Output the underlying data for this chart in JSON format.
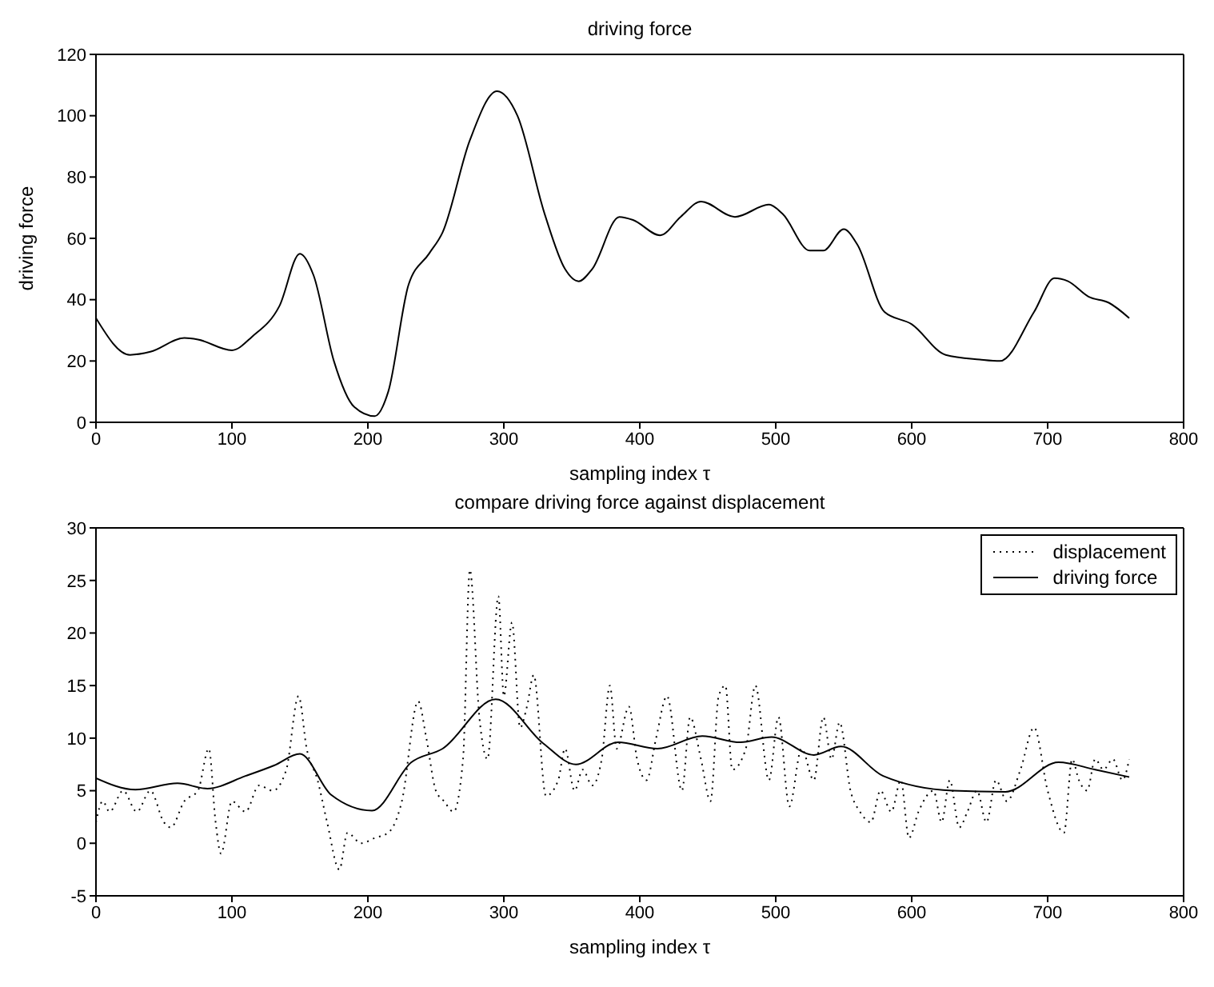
{
  "chart_data": [
    {
      "type": "line",
      "title": "driving force",
      "xlabel": "sampling index τ",
      "ylabel": "driving force",
      "xlim": [
        0,
        800
      ],
      "xticks": [
        0,
        100,
        200,
        300,
        400,
        500,
        600,
        700,
        800
      ],
      "ylim": [
        0,
        120
      ],
      "yticks": [
        0,
        20,
        40,
        60,
        80,
        100,
        120
      ],
      "legend": false,
      "marker": "none",
      "line_style": "solid",
      "series": [
        {
          "color": "#000000",
          "x": [
            0,
            25,
            40,
            65,
            75,
            100,
            115,
            135,
            150,
            160,
            175,
            190,
            205,
            215,
            230,
            245,
            255,
            275,
            295,
            310,
            330,
            345,
            355,
            365,
            385,
            395,
            415,
            430,
            445,
            470,
            495,
            505,
            525,
            535,
            550,
            560,
            580,
            600,
            625,
            650,
            665,
            690,
            705,
            715,
            730,
            745,
            760
          ],
          "values": [
            34,
            22,
            23,
            27.5,
            27,
            23.5,
            28,
            38,
            55,
            48,
            20,
            5,
            2,
            10,
            45,
            55,
            62,
            92,
            108,
            100,
            68,
            50,
            46,
            50,
            67,
            66,
            61,
            67,
            72,
            67,
            71,
            68,
            56,
            56,
            63,
            58,
            36,
            32,
            22,
            20.5,
            20,
            36,
            47,
            46,
            41,
            39,
            34
          ]
        }
      ]
    },
    {
      "type": "line",
      "title": "compare driving force against displacement",
      "xlabel": "sampling index τ",
      "xlim": [
        0,
        800
      ],
      "xticks": [
        0,
        100,
        200,
        300,
        400,
        500,
        600,
        700,
        800
      ],
      "ylim": [
        -5,
        30
      ],
      "yticks": [
        -5,
        0,
        5,
        10,
        15,
        20,
        25,
        30
      ],
      "legend": "top right",
      "marker": "none",
      "series": [
        {
          "name": "displacement",
          "color": "#000000",
          "line_style": "dotted",
          "x": [
            0,
            5,
            10,
            20,
            30,
            40,
            50,
            55,
            65,
            75,
            83,
            88,
            92,
            100,
            110,
            120,
            130,
            140,
            149,
            155,
            163,
            170,
            179,
            185,
            195,
            205,
            215,
            225,
            237,
            243,
            250,
            256,
            263,
            270,
            275,
            282,
            288,
            296,
            300,
            306,
            312,
            317,
            322,
            331,
            340,
            345,
            352,
            358,
            365,
            372,
            378,
            383,
            392,
            398,
            405,
            412,
            420,
            431,
            437,
            445,
            452,
            458,
            463,
            468,
            478,
            485,
            495,
            502,
            510,
            519,
            528,
            535,
            541,
            547,
            555,
            562,
            570,
            577,
            585,
            592,
            598,
            605,
            616,
            622,
            628,
            635,
            641,
            648,
            655,
            662,
            670,
            680,
            690,
            700,
            712,
            718,
            723,
            729,
            735,
            741,
            748,
            755,
            760
          ],
          "values": [
            2,
            4,
            3,
            5,
            3,
            5,
            2,
            1.5,
            4,
            5,
            9,
            2,
            -1,
            4,
            3,
            5.5,
            5,
            7,
            14,
            9,
            6,
            2,
            -2.5,
            1,
            0,
            0.5,
            1,
            4,
            13.5,
            10,
            5,
            4,
            3,
            8,
            26,
            12,
            8,
            23.5,
            14,
            21,
            11,
            13,
            16,
            4.5,
            6,
            9,
            5,
            7,
            5.5,
            8,
            15,
            9,
            13,
            8,
            6,
            10,
            14,
            5,
            12,
            8,
            4,
            14,
            15,
            7,
            9,
            15,
            6,
            12,
            3.5,
            9,
            6,
            12,
            8,
            11.5,
            5,
            3,
            2,
            5,
            3,
            6,
            0.5,
            3,
            5,
            2,
            6,
            1.5,
            3,
            5,
            2,
            6,
            4,
            7,
            11,
            5,
            1,
            8,
            6,
            5,
            8,
            7,
            8,
            6,
            8
          ]
        },
        {
          "name": "driving force",
          "color": "#000000",
          "line_style": "solid",
          "x": [
            0,
            29,
            60,
            82,
            110,
            131,
            150,
            173,
            203,
            232,
            255,
            294,
            329,
            353,
            384,
            413,
            446,
            474,
            497,
            528,
            548,
            579,
            630,
            669,
            708,
            735,
            760
          ],
          "values": [
            6.2,
            5.1,
            5.7,
            5.2,
            6.4,
            7.4,
            8.5,
            4.6,
            3.1,
            7.7,
            9,
            13.7,
            9.5,
            7.5,
            9.6,
            9,
            10.2,
            9.6,
            10.1,
            8.4,
            9.2,
            6.4,
            5,
            4.9,
            7.7,
            7,
            6.3
          ]
        }
      ]
    }
  ]
}
